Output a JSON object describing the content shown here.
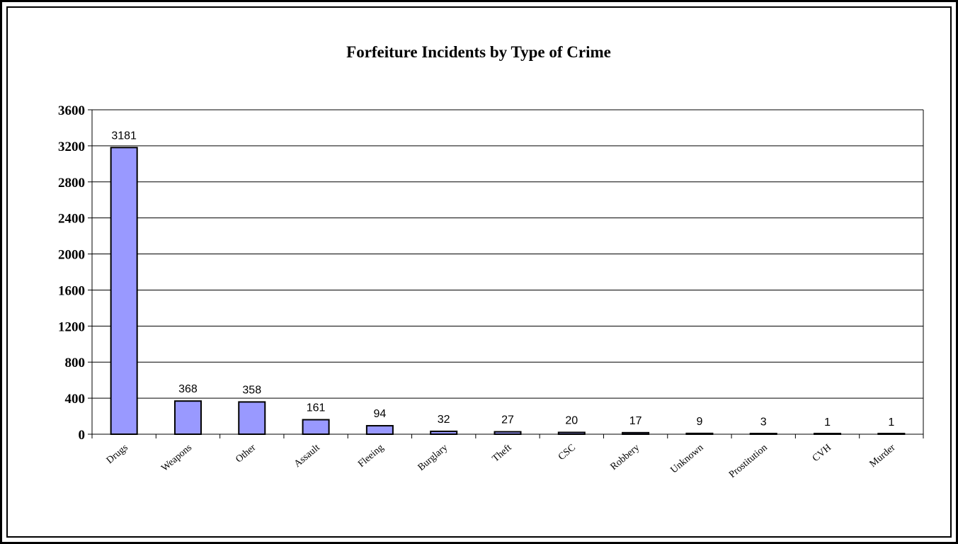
{
  "chart_data": {
    "type": "bar",
    "title": "Forfeiture Incidents by Type of Crime",
    "xlabel": "",
    "ylabel": "",
    "categories": [
      "Drugs",
      "Weapons",
      "Other",
      "Assault",
      "Fleeing",
      "Burglary",
      "Theft",
      "CSC",
      "Robbery",
      "Unknown",
      "Prostitution",
      "CVH",
      "Murder"
    ],
    "values": [
      3181,
      368,
      358,
      161,
      94,
      32,
      27,
      20,
      17,
      9,
      3,
      1,
      1
    ],
    "ylim": [
      0,
      3600
    ],
    "yticks": [
      0,
      400,
      800,
      1200,
      1600,
      2000,
      2400,
      2800,
      3200,
      3600
    ],
    "grid": true,
    "legend": "none",
    "bar_color": "#9999ff",
    "bar_edge_color": "#000000"
  }
}
